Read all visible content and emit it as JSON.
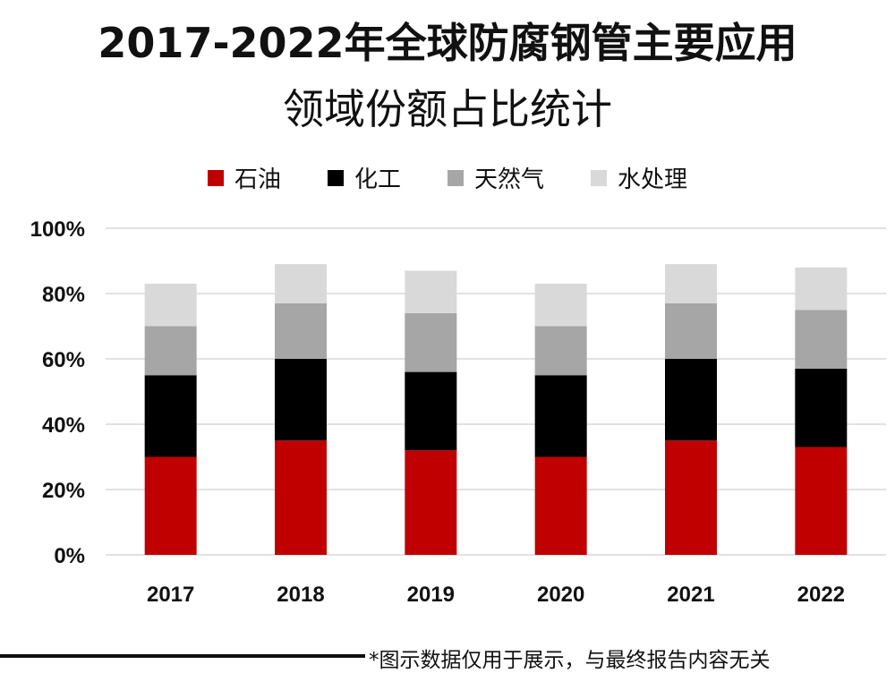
{
  "chart_data": {
    "type": "bar",
    "stacked": true,
    "title_line1": "2017-2022年全球防腐钢管主要应用",
    "title_line2": "领域份额占比统计",
    "categories": [
      "2017",
      "2018",
      "2019",
      "2020",
      "2021",
      "2022"
    ],
    "series": [
      {
        "name": "石油",
        "color": "#c00000",
        "values": [
          30,
          35,
          32,
          30,
          35,
          33
        ]
      },
      {
        "name": "化工",
        "color": "#000000",
        "values": [
          25,
          25,
          24,
          25,
          25,
          24
        ]
      },
      {
        "name": "天然气",
        "color": "#a6a6a6",
        "values": [
          15,
          17,
          18,
          15,
          17,
          18
        ]
      },
      {
        "name": "水处理",
        "color": "#d9d9d9",
        "values": [
          13,
          12,
          13,
          13,
          12,
          13
        ]
      }
    ],
    "ylim": [
      0,
      100
    ],
    "yticks": [
      "0%",
      "20%",
      "40%",
      "60%",
      "80%",
      "100%"
    ],
    "grid": true,
    "legend_position": "top"
  },
  "footnote": "*图示数据仅用于展示，与最终报告内容无关"
}
